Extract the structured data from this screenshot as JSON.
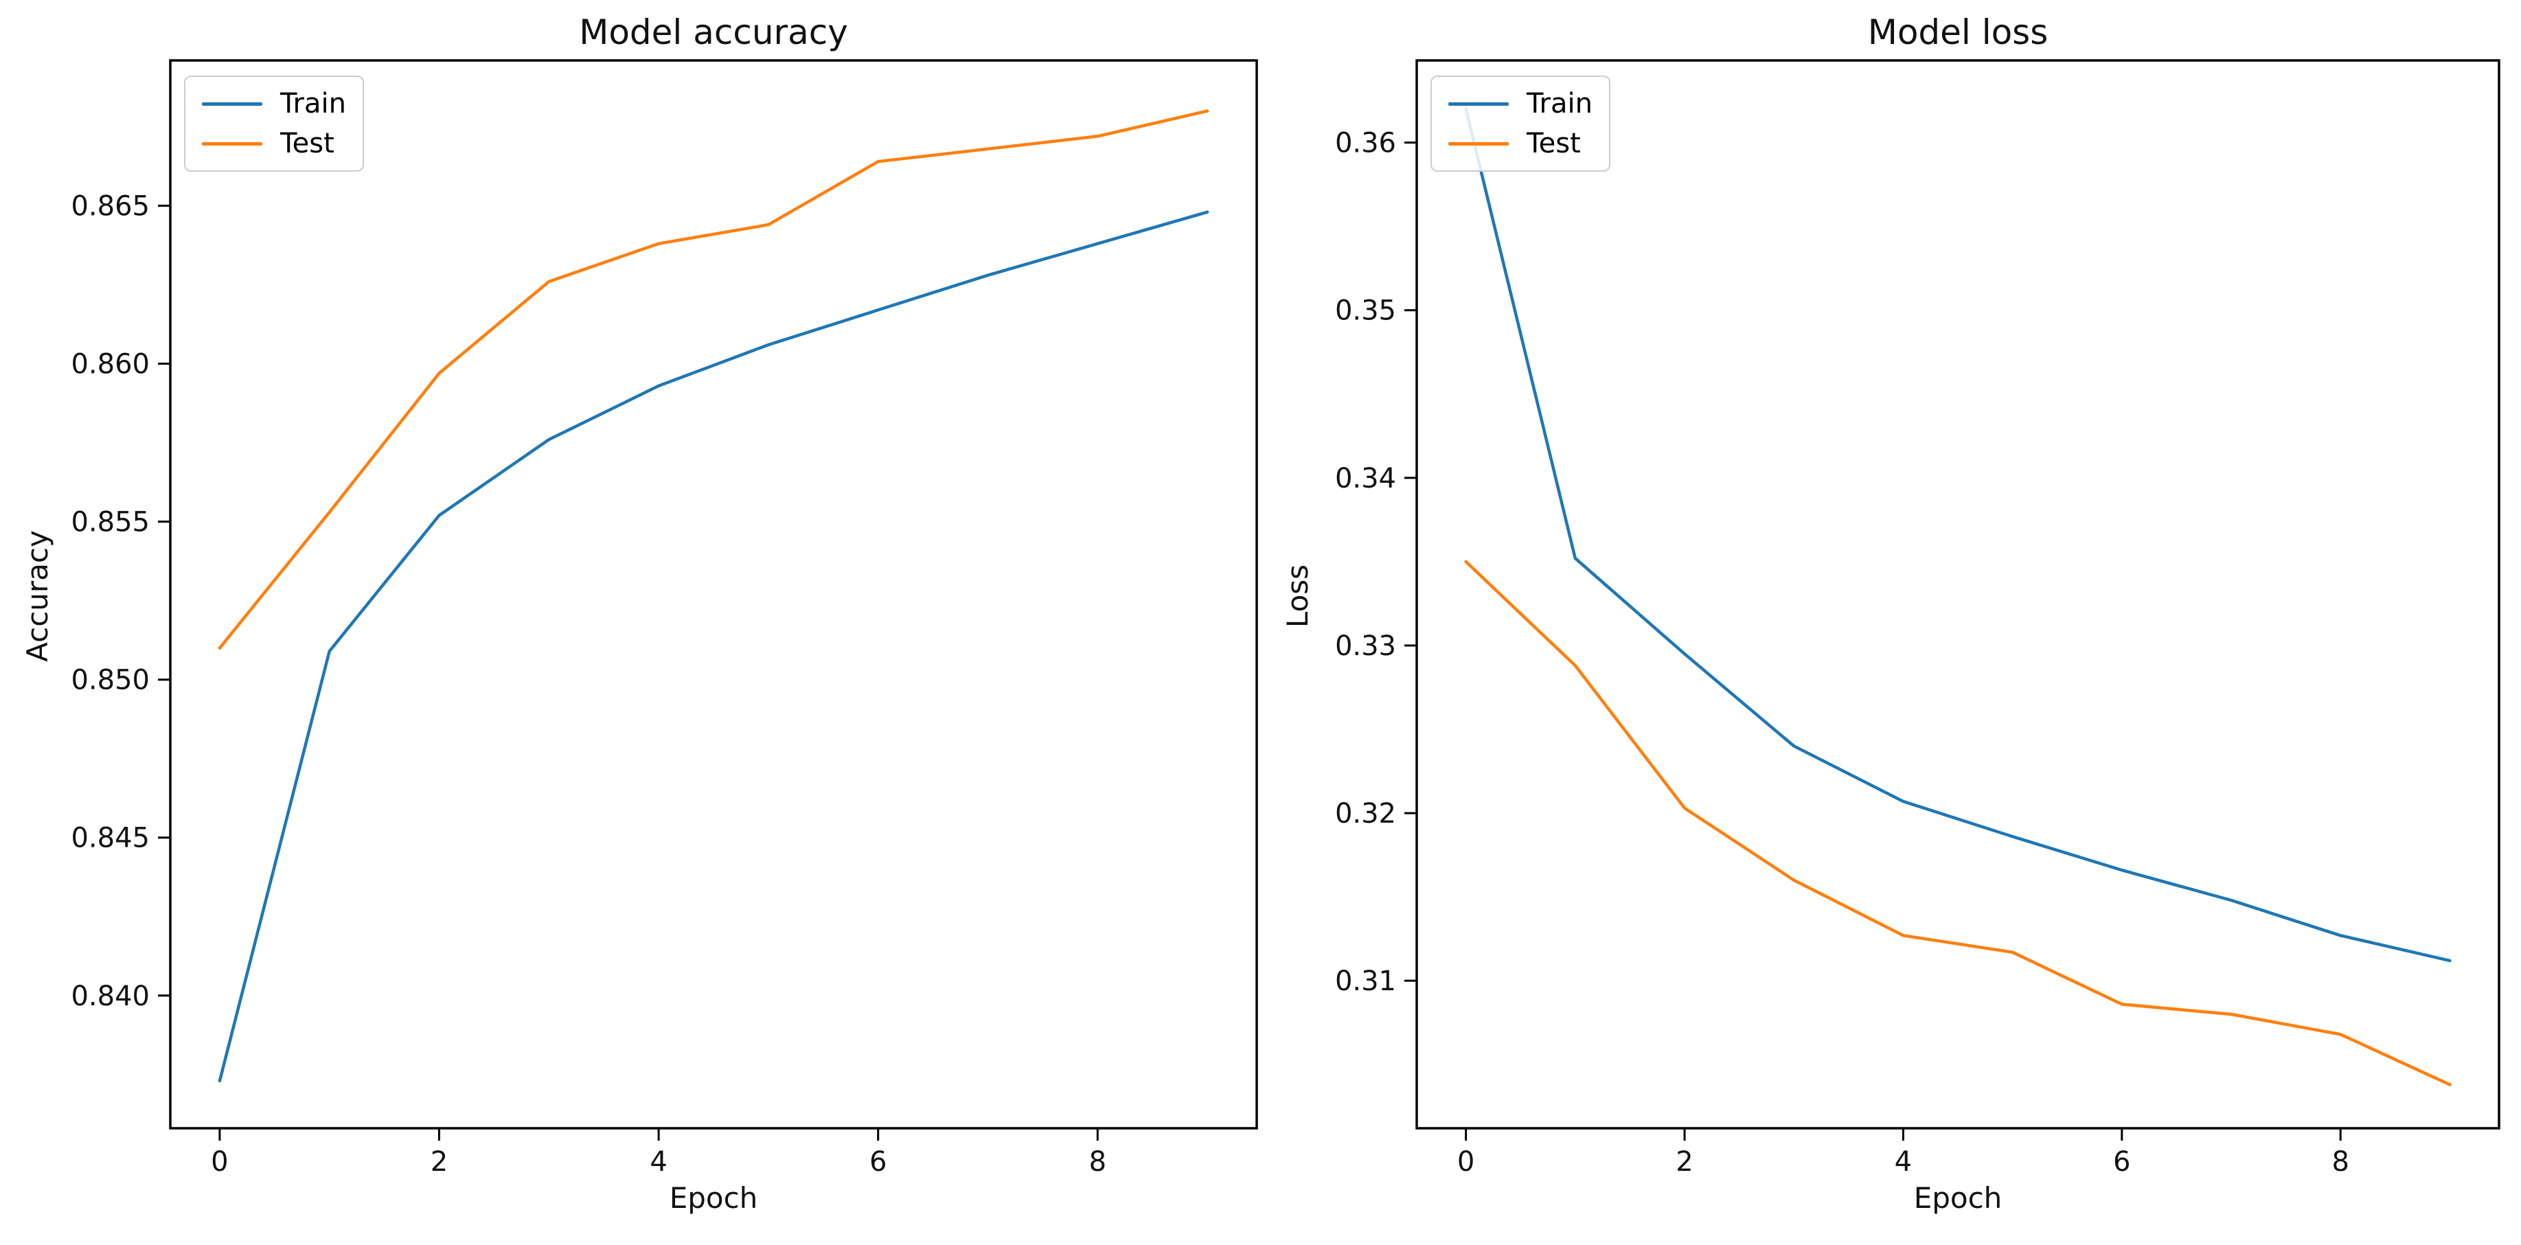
{
  "figure": {
    "background": "#ffffff",
    "accent_colors": {
      "train": "#1f77b4",
      "test": "#ff7f0e"
    }
  },
  "chart_data": [
    {
      "type": "line",
      "title": "Model accuracy",
      "xlabel": "Epoch",
      "ylabel": "Accuracy",
      "x": [
        0,
        1,
        2,
        3,
        4,
        5,
        6,
        7,
        8,
        9
      ],
      "series": [
        {
          "name": "Train",
          "color": "#1f77b4",
          "values": [
            0.8373,
            0.8509,
            0.8552,
            0.8576,
            0.8593,
            0.8606,
            0.8617,
            0.8628,
            0.8638,
            0.8648
          ]
        },
        {
          "name": "Test",
          "color": "#ff7f0e",
          "values": [
            0.851,
            0.8553,
            0.8597,
            0.8626,
            0.8638,
            0.8644,
            0.8664,
            0.8668,
            0.8672,
            0.868
          ]
        }
      ],
      "xlim": [
        -0.45,
        9.45
      ],
      "ylim": [
        0.8358,
        0.8696
      ],
      "xticks": {
        "values": [
          0,
          2,
          4,
          6,
          8
        ],
        "labels": [
          "0",
          "2",
          "4",
          "6",
          "8"
        ]
      },
      "yticks": {
        "values": [
          0.84,
          0.845,
          0.85,
          0.855,
          0.86,
          0.865
        ],
        "labels": [
          "0.840",
          "0.845",
          "0.850",
          "0.855",
          "0.860",
          "0.865"
        ]
      },
      "grid": false,
      "legend": {
        "position": "upper left",
        "entries": [
          "Train",
          "Test"
        ]
      }
    },
    {
      "type": "line",
      "title": "Model loss",
      "xlabel": "Epoch",
      "ylabel": "Loss",
      "x": [
        0,
        1,
        2,
        3,
        4,
        5,
        6,
        7,
        8,
        9
      ],
      "series": [
        {
          "name": "Train",
          "color": "#1f77b4",
          "values": [
            0.362,
            0.3352,
            0.3295,
            0.324,
            0.3207,
            0.3186,
            0.3166,
            0.3148,
            0.3127,
            0.3112
          ]
        },
        {
          "name": "Test",
          "color": "#ff7f0e",
          "values": [
            0.335,
            0.3288,
            0.3203,
            0.316,
            0.3127,
            0.3117,
            0.3086,
            0.308,
            0.3068,
            0.3038
          ]
        }
      ],
      "xlim": [
        -0.45,
        9.45
      ],
      "ylim": [
        0.3012,
        0.3649
      ],
      "xticks": {
        "values": [
          0,
          2,
          4,
          6,
          8
        ],
        "labels": [
          "0",
          "2",
          "4",
          "6",
          "8"
        ]
      },
      "yticks": {
        "values": [
          0.31,
          0.32,
          0.33,
          0.34,
          0.35,
          0.36
        ],
        "labels": [
          "0.31",
          "0.32",
          "0.33",
          "0.34",
          "0.35",
          "0.36"
        ]
      },
      "grid": false,
      "legend": {
        "position": "upper left",
        "entries": [
          "Train",
          "Test"
        ]
      }
    }
  ]
}
